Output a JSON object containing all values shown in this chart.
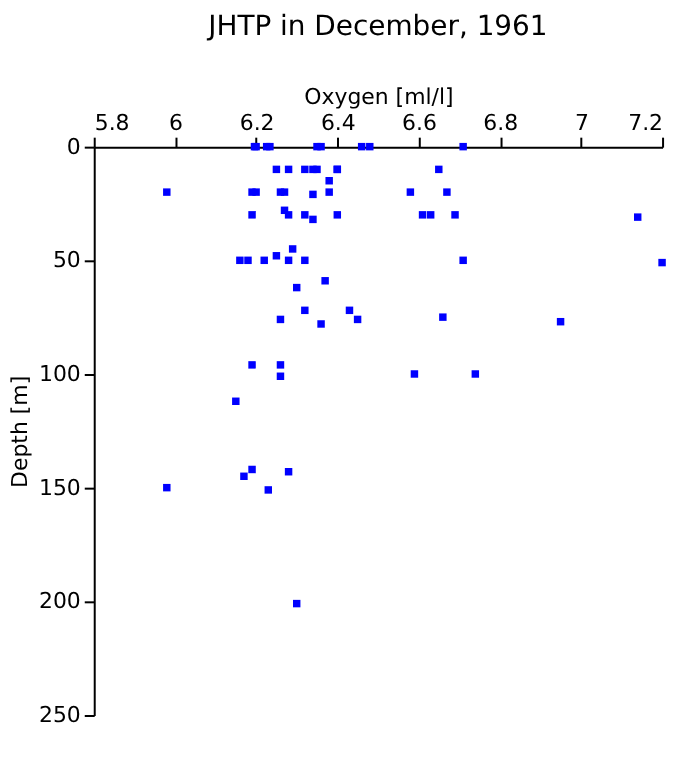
{
  "chart_data": {
    "type": "scatter",
    "title": "JHTP in December, 1961",
    "xlabel": "Oxygen [ml/l]",
    "ylabel": "Depth [m]",
    "x": [
      6.196,
      6.2,
      6.226,
      6.234,
      6.35,
      6.36,
      6.46,
      6.48,
      6.71,
      6.25,
      6.28,
      6.32,
      6.34,
      6.35,
      6.4,
      6.4,
      6.65,
      6.38,
      5.98,
      6.19,
      6.2,
      6.26,
      6.27,
      6.34,
      6.38,
      6.58,
      6.67,
      6.19,
      6.27,
      6.28,
      6.32,
      6.4,
      6.61,
      6.63,
      6.69,
      7.14,
      6.34,
      6.16,
      6.18,
      6.22,
      6.25,
      6.28,
      6.32,
      6.71,
      7.2,
      6.29,
      6.3,
      6.37,
      6.32,
      6.26,
      6.36,
      6.43,
      6.45,
      6.66,
      6.95,
      6.19,
      6.26,
      6.26,
      6.59,
      6.74,
      6.15,
      5.98,
      6.17,
      6.19,
      6.28,
      6.23,
      6.3
    ],
    "series": [
      {
        "color": "#0000ff",
        "values": [
          0,
          0,
          0,
          0,
          0,
          0,
          0,
          0,
          0,
          10,
          10,
          10,
          10,
          10,
          10,
          10,
          10,
          15,
          20,
          20,
          20,
          20,
          20,
          21,
          20,
          20,
          20,
          30,
          28,
          30,
          30,
          30,
          30,
          30,
          30,
          31,
          32,
          50,
          50,
          50,
          48,
          50,
          50,
          50,
          51,
          45,
          62,
          59,
          72,
          76,
          78,
          72,
          76,
          75,
          77,
          96,
          96,
          101,
          100,
          100,
          112,
          150,
          145,
          142,
          143,
          151,
          201
        ]
      }
    ],
    "xlim": [
      5.8,
      7.2
    ],
    "xticks": [
      5.8,
      6,
      6.2,
      6.4,
      6.6,
      6.8,
      7,
      7.2
    ],
    "ylim": [
      250,
      0
    ],
    "yticks": [
      0,
      50,
      100,
      150,
      200,
      250
    ],
    "grid": false,
    "marker": "square"
  }
}
